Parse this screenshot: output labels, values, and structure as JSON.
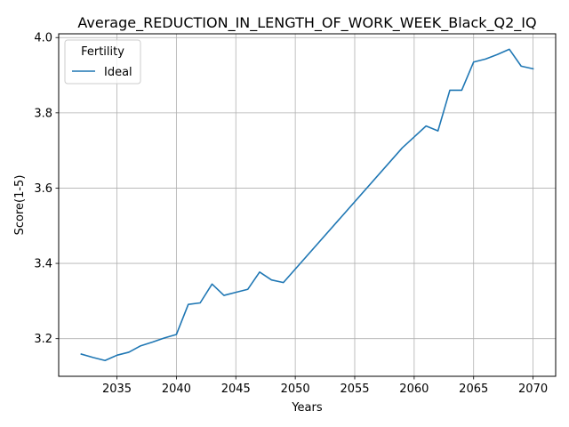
{
  "chart_data": {
    "type": "line",
    "title": "Average_REDUCTION_IN_LENGTH_OF_WORK_WEEK_Black_Q2_IQ",
    "xlabel": "Years",
    "ylabel": "Score(1-5)",
    "xlim": [
      2030.1,
      2071.9
    ],
    "ylim": [
      3.1,
      4.01
    ],
    "xticks": [
      2035,
      2040,
      2045,
      2050,
      2055,
      2060,
      2065,
      2070
    ],
    "yticks": [
      3.2,
      3.4,
      3.6,
      3.8,
      4.0
    ],
    "ytick_labels": [
      "3.2",
      "3.4",
      "3.6",
      "3.8",
      "4.0"
    ],
    "grid": true,
    "legend": {
      "title": "Fertility",
      "placement": "top-left"
    },
    "series": [
      {
        "name": "Ideal",
        "color": "#1f77b4",
        "x": [
          2032,
          2033,
          2034,
          2035,
          2036,
          2037,
          2038,
          2039,
          2040,
          2041,
          2042,
          2043,
          2044,
          2045,
          2046,
          2047,
          2048,
          2049,
          2059,
          2060,
          2061,
          2062,
          2063,
          2064,
          2065,
          2066,
          2067,
          2068,
          2069,
          2070
        ],
        "y": [
          3.159,
          3.15,
          3.142,
          3.156,
          3.164,
          3.181,
          3.191,
          3.202,
          3.211,
          3.291,
          3.295,
          3.345,
          3.315,
          3.323,
          3.331,
          3.377,
          3.356,
          3.349,
          3.707,
          3.736,
          3.765,
          3.752,
          3.86,
          3.86,
          3.935,
          3.943,
          3.955,
          3.969,
          3.924,
          3.917
        ]
      }
    ]
  }
}
